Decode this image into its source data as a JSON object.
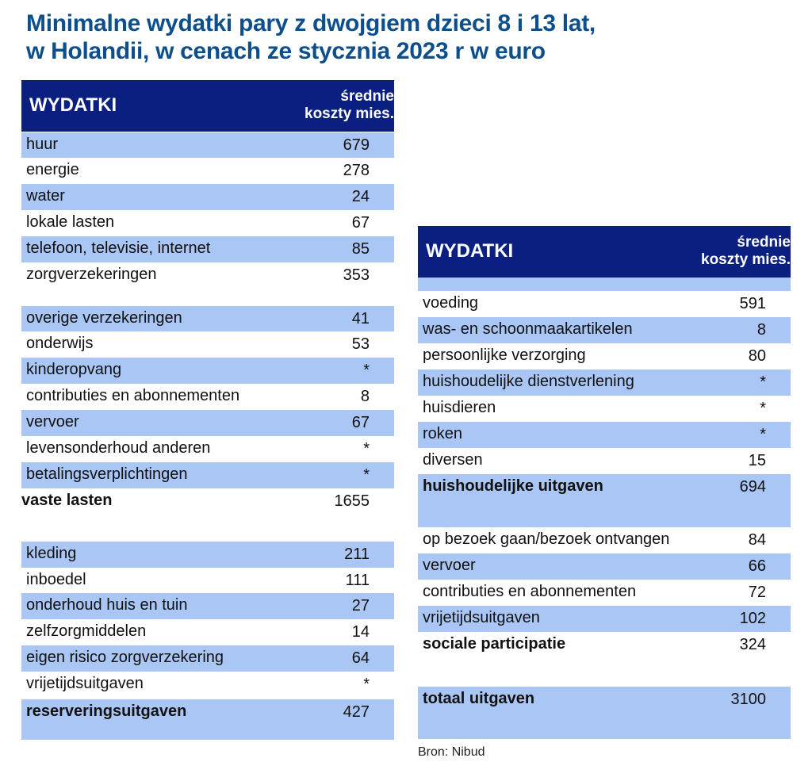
{
  "title": {
    "line1": "Minimalne wydatki pary z dwojgiem dzieci 8 i 13 lat,",
    "line2": "w Holandii, w cenach ze stycznia 2023 r w euro"
  },
  "colors": {
    "header": "#0b1f80",
    "row_shade": "#a9c6f5",
    "title": "#0d4f8c"
  },
  "left_table": {
    "header": {
      "col1": "WYDATKI",
      "col2_line1": "średnie",
      "col2_line2": "koszty mies."
    },
    "rows": [
      {
        "label": "huur",
        "value": "679"
      },
      {
        "label": "energie",
        "value": "278"
      },
      {
        "label": "water",
        "value": "24"
      },
      {
        "label": "lokale lasten",
        "value": "67"
      },
      {
        "label": "telefoon, televisie, internet",
        "value": "85"
      },
      {
        "label": "zorgverzekeringen",
        "value": "353"
      },
      {
        "label": "overige verzekeringen",
        "value": "41"
      },
      {
        "label": "onderwijs",
        "value": "53"
      },
      {
        "label": "kinderopvang",
        "value": "*"
      },
      {
        "label": "contributies en abonnementen",
        "value": "8"
      },
      {
        "label": "vervoer",
        "value": "67"
      },
      {
        "label": "levensonderhoud anderen",
        "value": "*"
      },
      {
        "label": "betalingsverplichtingen",
        "value": "*"
      },
      {
        "label": "vaste lasten",
        "value": "1655",
        "bold": true
      },
      {
        "label": "kleding",
        "value": "211"
      },
      {
        "label": "inboedel",
        "value": "111"
      },
      {
        "label": "onderhoud huis en tuin",
        "value": "27"
      },
      {
        "label": "zelfzorgmiddelen",
        "value": "14"
      },
      {
        "label": "eigen risico zorgverzekering",
        "value": "64"
      },
      {
        "label": "vrijetijdsuitgaven",
        "value": "*"
      },
      {
        "label": "reserveringsuitgaven",
        "value": "427",
        "bold": true
      }
    ]
  },
  "right_table": {
    "header": {
      "col1": "WYDATKI",
      "col2_line1": "średnie",
      "col2_line2": "koszty mies."
    },
    "rows": [
      {
        "label": "",
        "value": ""
      },
      {
        "label": "voeding",
        "value": "591"
      },
      {
        "label": "was- en schoonmaakartikelen",
        "value": "8"
      },
      {
        "label": "persoonlijke verzorging",
        "value": "80"
      },
      {
        "label": "huishoudelijke dienstverlening",
        "value": "*"
      },
      {
        "label": "huisdieren",
        "value": "*"
      },
      {
        "label": "roken",
        "value": "*"
      },
      {
        "label": "diversen",
        "value": "15"
      },
      {
        "label": "huishoudelijke uitgaven",
        "value": "694",
        "bold": true
      },
      {
        "label": "op bezoek gaan/bezoek ontvangen",
        "value": "84"
      },
      {
        "label": "vervoer",
        "value": "66"
      },
      {
        "label": "contributies en abonnementen",
        "value": "72"
      },
      {
        "label": "vrijetijdsuitgaven",
        "value": "102"
      },
      {
        "label": "sociale participatie",
        "value": "324",
        "bold": true
      },
      {
        "label": "totaal uitgaven",
        "value": "3100",
        "bold": true
      }
    ]
  },
  "source": "Bron: Nibud"
}
